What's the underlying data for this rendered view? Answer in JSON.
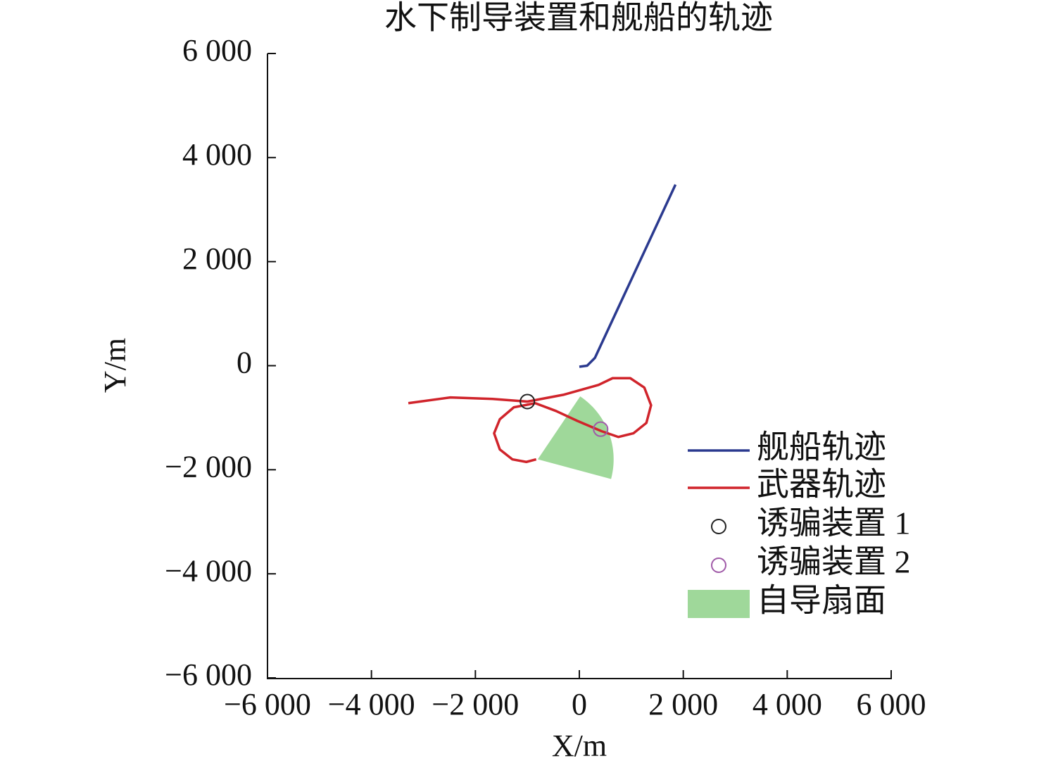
{
  "chart_data": {
    "type": "line",
    "title": "水下制导装置和舰船的轨迹",
    "xlabel": "X/m",
    "ylabel": "Y/m",
    "xlim": [
      -6000,
      6000
    ],
    "ylim": [
      -6000,
      6000
    ],
    "xticks": [
      {
        "value": -6000,
        "label": "−6 000"
      },
      {
        "value": -4000,
        "label": "−4 000"
      },
      {
        "value": -2000,
        "label": "−2 000"
      },
      0,
      {
        "value": 2000,
        "label": "2 000"
      },
      {
        "value": 4000,
        "label": "4 000"
      },
      {
        "value": 6000,
        "label": "6 000"
      }
    ],
    "yticks": [
      {
        "value": -6000,
        "label": "−6 000"
      },
      {
        "value": -4000,
        "label": "−4 000"
      },
      {
        "value": -2000,
        "label": "−2 000"
      },
      0,
      {
        "value": 2000,
        "label": "2 000"
      },
      {
        "value": 4000,
        "label": "4 000"
      },
      {
        "value": 6000,
        "label": "6 000"
      }
    ],
    "series": [
      {
        "name": "舰船轨迹",
        "color": "#2b3a8f",
        "x": [
          0,
          150,
          300,
          1850
        ],
        "y": [
          -20,
          0,
          150,
          3480
        ]
      },
      {
        "name": "武器轨迹",
        "color": "#d0242b",
        "x": [
          -3290,
          -2480,
          -1670,
          -1000,
          -310,
          370,
          640,
          980,
          1250,
          1380,
          1290,
          1040,
          750,
          430,
          -40,
          -450,
          -850,
          -1260,
          -1530,
          -1640,
          -1530,
          -1290,
          -1020,
          -830
        ],
        "y": [
          -720,
          -610,
          -640,
          -690,
          -560,
          -370,
          -240,
          -240,
          -420,
          -760,
          -1100,
          -1300,
          -1370,
          -1260,
          -1060,
          -870,
          -720,
          -800,
          -1030,
          -1300,
          -1610,
          -1800,
          -1850,
          -1800
        ]
      }
    ],
    "points": [
      {
        "name": "诱骗装置 1",
        "color": "#222222",
        "x": -1000,
        "y": -690
      },
      {
        "name": "诱骗装置 2",
        "color": "#a05aa8",
        "x": 410,
        "y": -1220
      }
    ],
    "sector": {
      "name": "自导扇面",
      "color": "#9fd89a",
      "center": [
        -800,
        -1800
      ],
      "radius": 1460,
      "angles": [
        -15,
        56
      ]
    }
  }
}
